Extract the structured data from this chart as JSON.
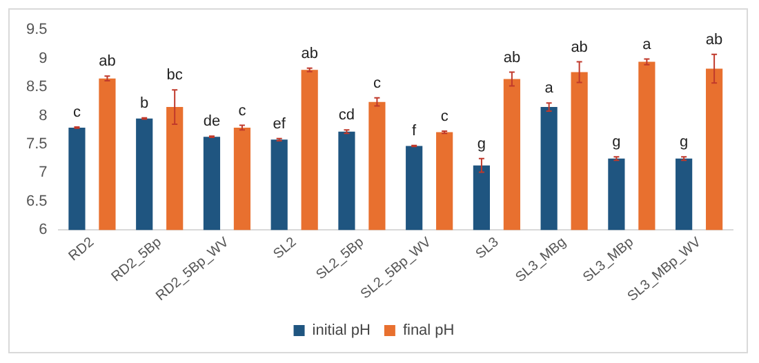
{
  "chart_data": {
    "type": "bar",
    "categories": [
      "RD2",
      "RD2_5Bp",
      "RD2_5Bp_WV",
      "SL2",
      "SL2_5Bp",
      "SL2_5Bp_WV",
      "SL3",
      "SL3_MBg",
      "SL3_MBp",
      "SL3_MBp_WV"
    ],
    "series": [
      {
        "name": "initial pH",
        "color": "#1f5580",
        "values": [
          7.79,
          7.95,
          7.63,
          7.58,
          7.72,
          7.47,
          7.13,
          8.15,
          7.25,
          7.25
        ],
        "errors": [
          0.01,
          0.01,
          0.01,
          0.02,
          0.03,
          0.01,
          0.12,
          0.07,
          0.03,
          0.03
        ],
        "value_labels": [
          "c",
          "b",
          "de",
          "ef",
          "cd",
          "f",
          "g",
          "a",
          "g",
          "g"
        ]
      },
      {
        "name": "final pH",
        "color": "#e8702f",
        "values": [
          8.65,
          8.15,
          7.79,
          8.8,
          8.24,
          7.71,
          8.64,
          8.76,
          8.94,
          8.82
        ],
        "errors": [
          0.04,
          0.3,
          0.04,
          0.03,
          0.07,
          0.02,
          0.12,
          0.18,
          0.05,
          0.25
        ],
        "value_labels": [
          "ab",
          "bc",
          "c",
          "ab",
          "c",
          "c",
          "ab",
          "ab",
          "a",
          "ab"
        ]
      }
    ],
    "ylim": [
      6,
      9.5
    ],
    "yticks": [
      6,
      6.5,
      7,
      7.5,
      8,
      8.5,
      9,
      9.5
    ],
    "grid": false,
    "legend": "bottom"
  }
}
